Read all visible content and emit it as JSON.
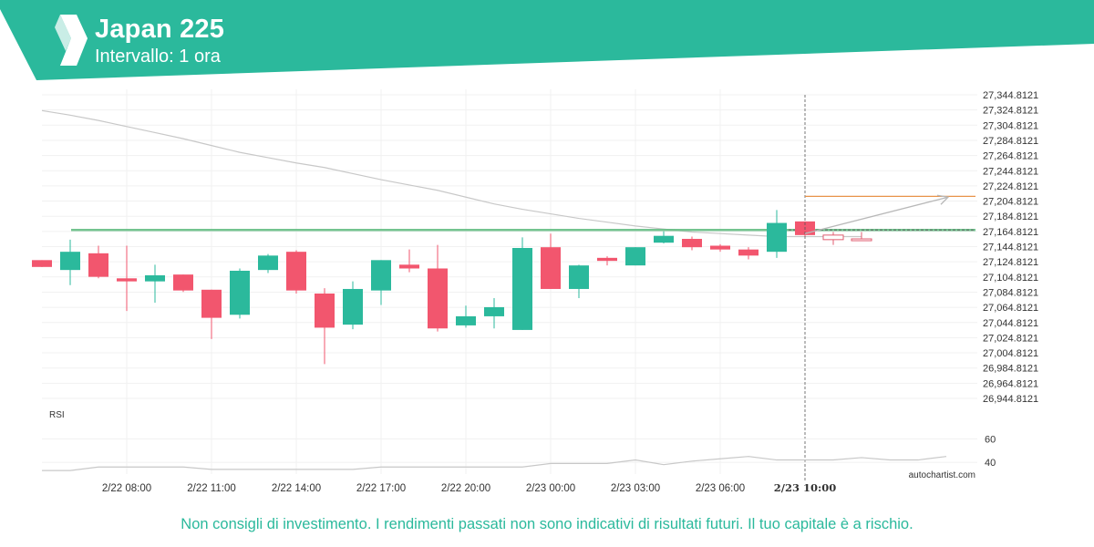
{
  "header": {
    "title": "Japan 225",
    "subtitle": "Intervallo: 1 ora",
    "brand_color": "#2bb99c"
  },
  "watermark": "autochartist.com",
  "disclaimer": "Non consigli di investimento. I rendimenti passati non sono indicativi di risultati futuri. Il tuo capitale è a rischio.",
  "chart_data": {
    "type": "candlestick",
    "colors": {
      "up": "#2bb99c",
      "down": "#f2566e",
      "level": "#5cba7d",
      "forecast": "#e8934a",
      "ma": "#c8c8c8"
    },
    "y_ticks": [
      "27,344.8121",
      "27,324.8121",
      "27,304.8121",
      "27,284.8121",
      "27,264.8121",
      "27,244.8121",
      "27,224.8121",
      "27,204.8121",
      "27,184.8121",
      "27,164.8121",
      "27,144.8121",
      "27,124.8121",
      "27,104.8121",
      "27,084.8121",
      "27,064.8121",
      "27,044.8121",
      "27,024.8121",
      "27,004.8121",
      "26,984.8121",
      "26,964.8121",
      "26,944.8121"
    ],
    "ylim": [
      26944.8121,
      27344.8121
    ],
    "x_ticks": [
      {
        "label": "2/22 08:00",
        "index": 3
      },
      {
        "label": "2/22 11:00",
        "index": 6
      },
      {
        "label": "2/22 14:00",
        "index": 9
      },
      {
        "label": "2/22 17:00",
        "index": 12
      },
      {
        "label": "2/22 20:00",
        "index": 15
      },
      {
        "label": "2/23 00:00",
        "index": 18
      },
      {
        "label": "2/23 03:00",
        "index": 21
      },
      {
        "label": "2/23 06:00",
        "index": 24
      },
      {
        "label": "2/23 10:00",
        "index": 27,
        "highlight": true
      }
    ],
    "candles": [
      {
        "o": 27127,
        "h": 27127,
        "l": 27118,
        "c": 27118
      },
      {
        "o": 27114,
        "h": 27154,
        "l": 27094,
        "c": 27138
      },
      {
        "o": 27136,
        "h": 27146,
        "l": 27103,
        "c": 27105
      },
      {
        "o": 27103,
        "h": 27146,
        "l": 27060,
        "c": 27099
      },
      {
        "o": 27099,
        "h": 27121,
        "l": 27071,
        "c": 27107
      },
      {
        "o": 27108,
        "h": 27108,
        "l": 27085,
        "c": 27087
      },
      {
        "o": 27088,
        "h": 27088,
        "l": 27023,
        "c": 27051
      },
      {
        "o": 27055,
        "h": 27116,
        "l": 27050,
        "c": 27113
      },
      {
        "o": 27114,
        "h": 27135,
        "l": 27110,
        "c": 27133
      },
      {
        "o": 27138,
        "h": 27140,
        "l": 27083,
        "c": 27087
      },
      {
        "o": 27083,
        "h": 27090,
        "l": 26990,
        "c": 27038
      },
      {
        "o": 27042,
        "h": 27099,
        "l": 27036,
        "c": 27089
      },
      {
        "o": 27087,
        "h": 27127,
        "l": 27068,
        "c": 27127
      },
      {
        "o": 27121,
        "h": 27141,
        "l": 27111,
        "c": 27116
      },
      {
        "o": 27116,
        "h": 27147,
        "l": 27033,
        "c": 27037
      },
      {
        "o": 27041,
        "h": 27067,
        "l": 27038,
        "c": 27053
      },
      {
        "o": 27053,
        "h": 27077,
        "l": 27037,
        "c": 27065
      },
      {
        "o": 27035,
        "h": 27157,
        "l": 27035,
        "c": 27143
      },
      {
        "o": 27144,
        "h": 27162,
        "l": 27089,
        "c": 27089
      },
      {
        "o": 27089,
        "h": 27121,
        "l": 27077,
        "c": 27120
      },
      {
        "o": 27130,
        "h": 27132,
        "l": 27120,
        "c": 27126
      },
      {
        "o": 27120,
        "h": 27144,
        "l": 27120,
        "c": 27144
      },
      {
        "o": 27150,
        "h": 27165,
        "l": 27149,
        "c": 27159
      },
      {
        "o": 27155,
        "h": 27158,
        "l": 27140,
        "c": 27144
      },
      {
        "o": 27146,
        "h": 27148,
        "l": 27138,
        "c": 27141
      },
      {
        "o": 27141,
        "h": 27144,
        "l": 27128,
        "c": 27133
      },
      {
        "o": 27138,
        "h": 27193,
        "l": 27130,
        "c": 27176
      },
      {
        "o": 27178,
        "h": 27178,
        "l": 27158,
        "c": 27160
      },
      {
        "o": 27160,
        "h": 27164,
        "l": 27147,
        "c": 27154
      },
      {
        "o": 27155,
        "h": 27164,
        "l": 27155,
        "c": 27155
      }
    ],
    "moving_average": [
      27324,
      27318,
      27311,
      27303,
      27295,
      27287,
      27278,
      27269,
      27262,
      27255,
      27249,
      27241,
      27233,
      27226,
      27219,
      27210,
      27201,
      27194,
      27188,
      27182,
      27177,
      27172,
      27168,
      27164,
      27162,
      27160,
      27158,
      27158,
      27158,
      27158
    ],
    "support_level": 27166.8,
    "forecast": {
      "from_index": 27,
      "from_value": 27162,
      "to_index": 32,
      "to_value": 27210,
      "target_level": 27211
    },
    "rsi": {
      "label": "RSI",
      "ticks": [
        60,
        40
      ],
      "ylim": [
        30,
        75
      ],
      "values": [
        33,
        33,
        36,
        36,
        36,
        36,
        34,
        34,
        34,
        34,
        34,
        34,
        36,
        36,
        36,
        36,
        36,
        36,
        39,
        39,
        39,
        42,
        38,
        41,
        43,
        45,
        42,
        42,
        42,
        44,
        42,
        42,
        45
      ]
    }
  }
}
